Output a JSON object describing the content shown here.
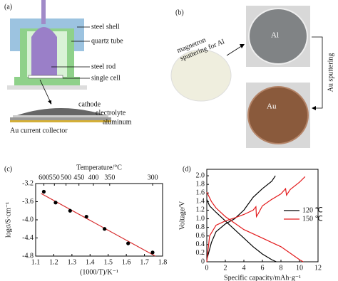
{
  "panel_a": {
    "label": "(a)",
    "parts": [
      "steel shell",
      "quartz tube",
      "steel rod",
      "single cell"
    ],
    "layers": [
      "cathode",
      "electrolyte",
      "aluminum",
      "Au current collector"
    ]
  },
  "panel_b": {
    "label": "(b)",
    "step1": [
      "magnetron",
      "sputtering for Al"
    ],
    "sample1": "Al",
    "step2": "Au sputtering",
    "sample2": "Au"
  },
  "chart_data": [
    {
      "type": "scatter",
      "panel_label": "(c)",
      "xlabel": "(1000/T)/K⁻¹",
      "ylabel": "logσ/S·cm⁻¹",
      "x2label": "Temperature/°C",
      "x": [
        1.145,
        1.21,
        1.29,
        1.38,
        1.48,
        1.61,
        1.745
      ],
      "y": [
        -3.38,
        -3.62,
        -3.8,
        -3.93,
        -4.2,
        -4.52,
        -4.72
      ],
      "color": "#000000",
      "fit": {
        "x": [
          1.13,
          1.76
        ],
        "y": [
          -3.42,
          -4.8
        ],
        "color": "#d62728"
      },
      "xlim": [
        1.1,
        1.8
      ],
      "xticks": [
        1.1,
        1.2,
        1.3,
        1.4,
        1.5,
        1.6,
        1.7,
        1.8
      ],
      "ylim": [
        -4.8,
        -3.2
      ],
      "yticks": [
        -3.2,
        -3.6,
        {
          "value": -4,
          "label": "-4.0"
        },
        -4.4,
        -4.8
      ],
      "x2ticks": [
        {
          "value": 1.1455,
          "label": "600"
        },
        {
          "value": 1.2033,
          "label": "550"
        },
        {
          "value": 1.2674,
          "label": "500"
        },
        {
          "value": 1.3387,
          "label": "450"
        },
        {
          "value": 1.4184,
          "label": "400"
        },
        {
          "value": 1.5083,
          "label": "350"
        },
        {
          "value": 1.7452,
          "label": "300"
        }
      ]
    },
    {
      "type": "line",
      "panel_label": "(d)",
      "xlabel": "Specific capacity/mAh·g⁻¹",
      "ylabel": "Voltage/V",
      "xlim": [
        0,
        12
      ],
      "xticks": [
        0,
        2,
        4,
        6,
        8,
        10,
        12
      ],
      "ylim": [
        0,
        2.15
      ],
      "yticks": [
        0,
        0.2,
        0.4,
        0.6,
        0.8,
        {
          "value": 1,
          "label": "1.0"
        },
        1.2,
        1.4,
        1.6,
        1.8,
        {
          "value": 2,
          "label": "2.0"
        }
      ],
      "series": [
        {
          "name": "120 ℃",
          "color": "#000000",
          "curves": [
            {
              "x": [
                0,
                0.3,
                1,
                2,
                3,
                4,
                5,
                6,
                7,
                7.5
              ],
              "y": [
                1.45,
                1.3,
                1.15,
                0.95,
                0.75,
                0.55,
                0.35,
                0.18,
                0.05,
                0
              ]
            },
            {
              "x": [
                0,
                0.5,
                1,
                2,
                3,
                4,
                5,
                6,
                7,
                7.4
              ],
              "y": [
                0.05,
                0.45,
                0.7,
                0.88,
                1.0,
                1.2,
                1.5,
                1.7,
                1.87,
                2.0
              ]
            }
          ]
        },
        {
          "name": "150 ℃",
          "color": "#e31a1c",
          "curves": [
            {
              "x": [
                0,
                0.5,
                1,
                2,
                3,
                4,
                5,
                6,
                7,
                8,
                9,
                10,
                10.4
              ],
              "y": [
                1.62,
                1.4,
                1.25,
                1.05,
                0.9,
                0.75,
                0.65,
                0.55,
                0.45,
                0.35,
                0.2,
                0.05,
                0
              ]
            },
            {
              "x": [
                0,
                0.3,
                1,
                2,
                3,
                4,
                5,
                5.3,
                5.35,
                5.5,
                6,
                7,
                8,
                8.5,
                8.6,
                9,
                10,
                10.6
              ],
              "y": [
                0,
                0.6,
                0.85,
                0.95,
                1.02,
                1.1,
                1.2,
                1.28,
                1.05,
                1.1,
                1.3,
                1.45,
                1.58,
                1.7,
                1.55,
                1.68,
                1.85,
                1.98
              ]
            }
          ]
        }
      ]
    }
  ]
}
